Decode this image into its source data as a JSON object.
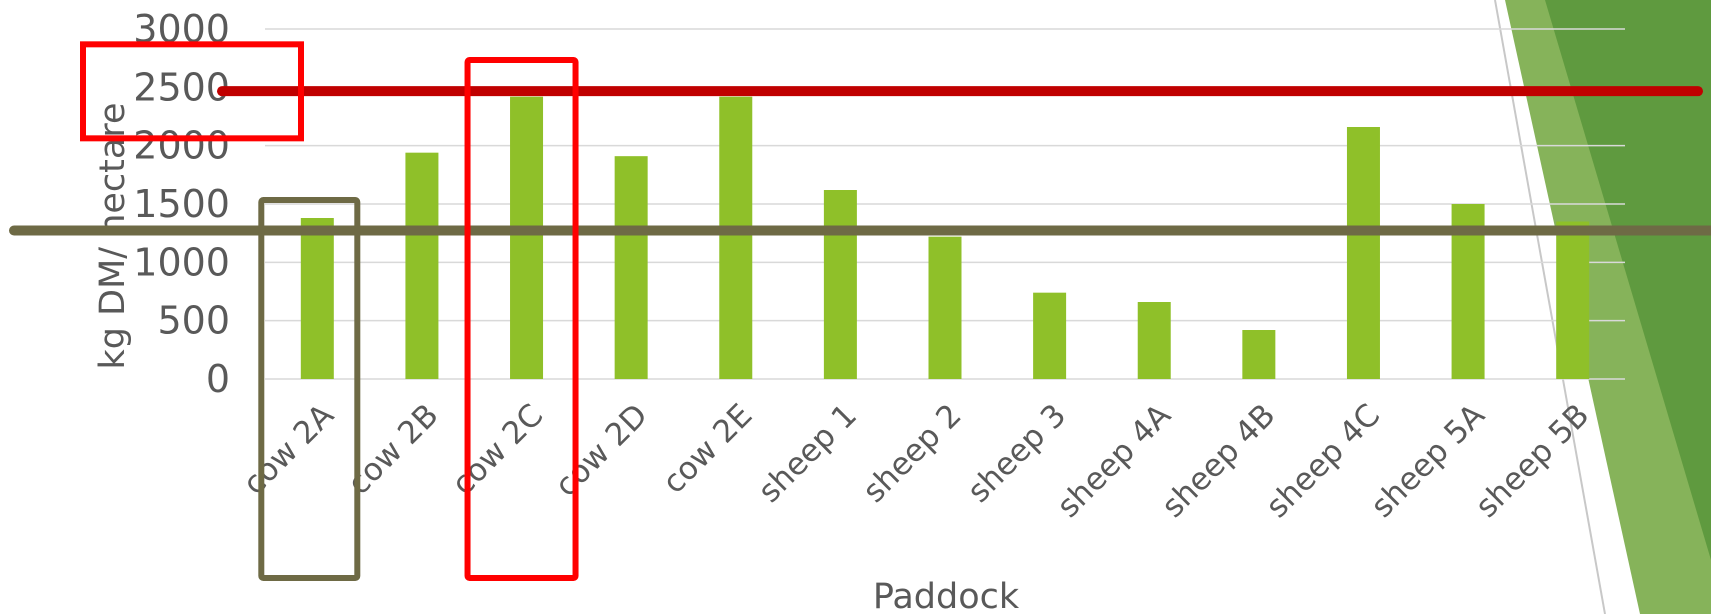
{
  "chart_data": {
    "type": "bar",
    "title": "",
    "xlabel": "Paddock",
    "ylabel": "kg DM/ hectare",
    "ylim": [
      0,
      3000
    ],
    "yticks": [
      0,
      500,
      1000,
      1500,
      2000,
      2500,
      3000
    ],
    "grid": true,
    "legend": "none",
    "categories": [
      "cow 2A",
      "cow 2B",
      "cow 2C",
      "cow 2D",
      "cow 2E",
      "sheep 1",
      "sheep 2",
      "sheep 3",
      "sheep 4A",
      "sheep 4B",
      "sheep 4C",
      "sheep 5A",
      "sheep 5B"
    ],
    "series": [
      {
        "values": [
          1380,
          1940,
          2420,
          1910,
          2420,
          1620,
          1220,
          740,
          660,
          420,
          2160,
          1500,
          1350
        ]
      }
    ],
    "reference_lines": [
      {
        "value": 2450,
        "color": "#c00000"
      },
      {
        "value": 1350,
        "color": "#6e6a45"
      }
    ],
    "highlighted_categories": [
      "cow 2A",
      "cow 2C"
    ]
  },
  "colors": {
    "bar": "#8fc029",
    "grid": "#d9d9d9",
    "text": "#595959",
    "highlight_red": "#ff0000",
    "highlight_olive": "#6e6a45",
    "deco_dark": "#5f9a3f",
    "deco_mid": "#86b35a",
    "deco_light": "#dcebc4"
  }
}
